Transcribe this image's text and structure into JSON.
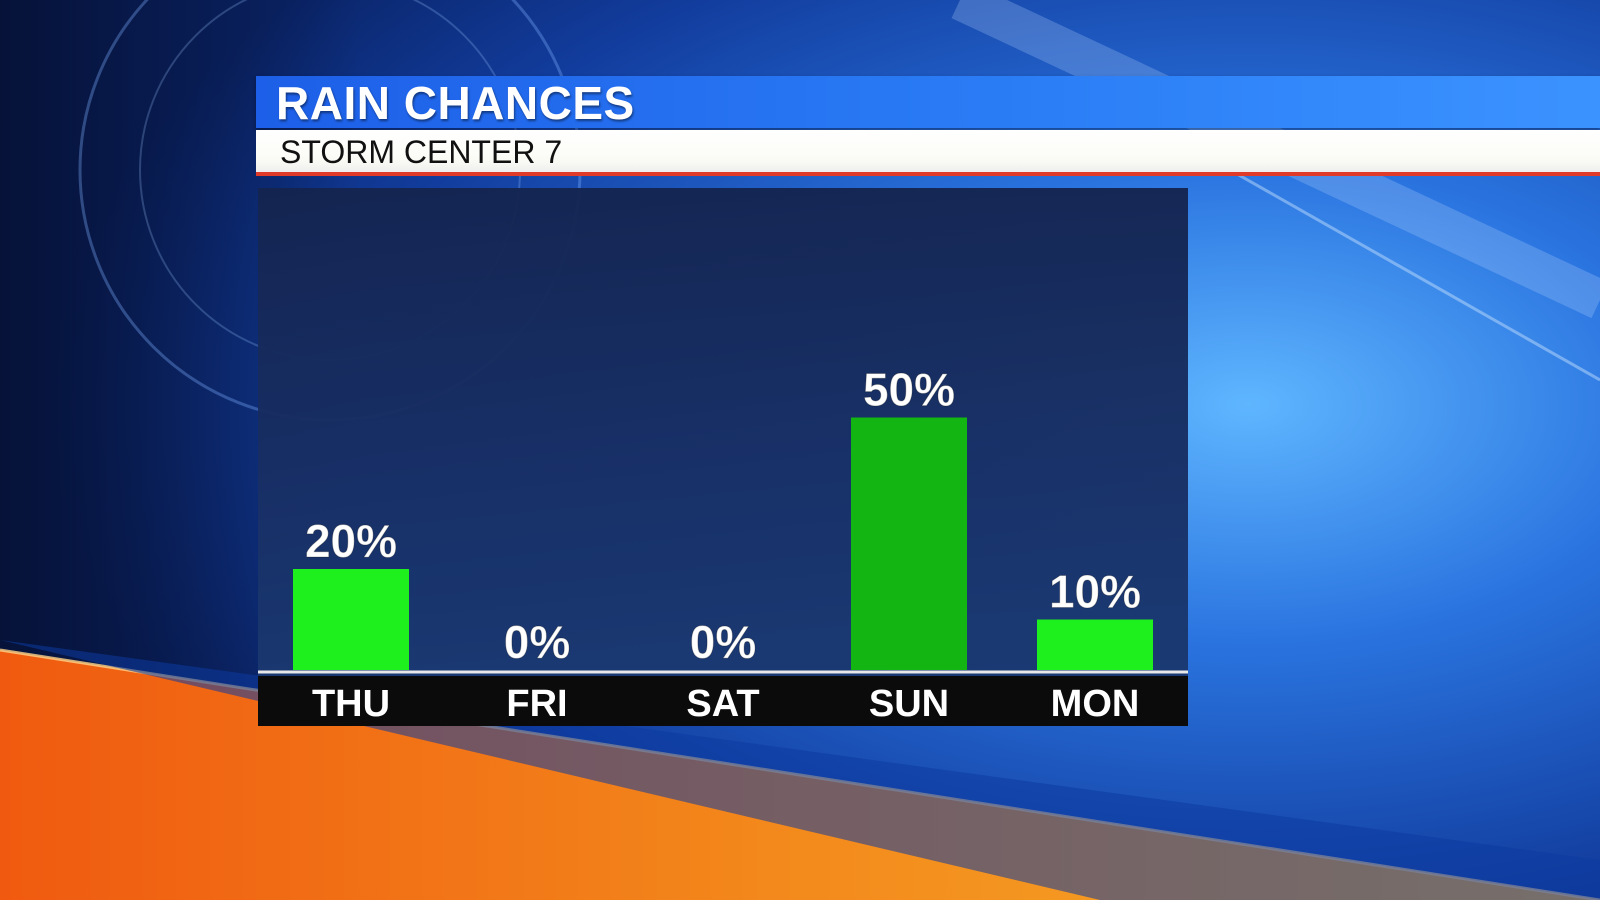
{
  "header": {
    "title": "RAIN CHANCES",
    "subtitle": "STORM CENTER 7"
  },
  "colors": {
    "title_bar": "#1d5fe8",
    "subtitle_stripe": "#e03a2a",
    "bar_light": "#1ef01e",
    "bar_dark": "#12b512",
    "axis_strip": "#0b0b0b",
    "background_orange": "#f07a1a"
  },
  "chart_data": {
    "type": "bar",
    "categories": [
      "THU",
      "FRI",
      "SAT",
      "SUN",
      "MON"
    ],
    "values": [
      20,
      0,
      0,
      50,
      10
    ],
    "value_labels": [
      "20%",
      "0%",
      "0%",
      "50%",
      "10%"
    ],
    "title": "RAIN CHANCES",
    "subtitle": "STORM CENTER 7",
    "ylim": [
      0,
      100
    ],
    "grid": false,
    "legend": "none"
  }
}
